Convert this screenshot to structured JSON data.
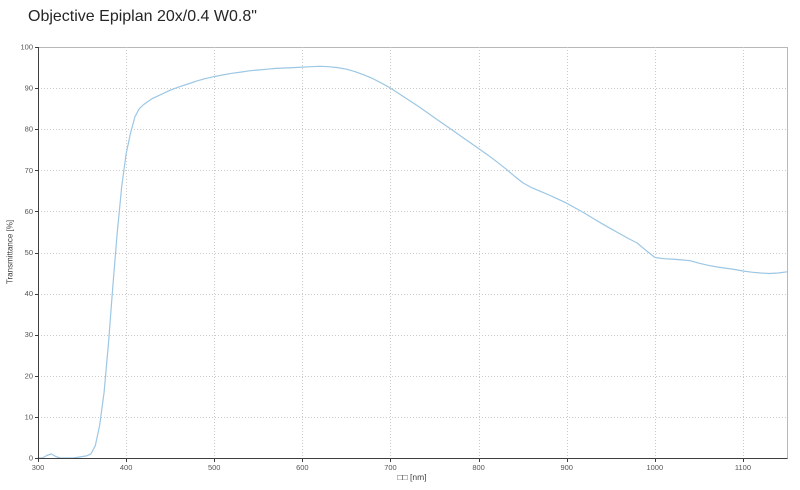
{
  "title": "Objective Epiplan 20x/0.4 W0.8\"",
  "chart_data": {
    "type": "line",
    "title": "Objective Epiplan 20x/0.4 W0.8\"",
    "xlabel": "□□ [nm]",
    "ylabel": "Transmittance [%]",
    "xlim": [
      300,
      1150
    ],
    "ylim": [
      0,
      100
    ],
    "x_ticks": [
      300,
      400,
      500,
      600,
      700,
      800,
      900,
      1000,
      1100
    ],
    "y_ticks": [
      0,
      10,
      20,
      30,
      40,
      50,
      60,
      70,
      80,
      90,
      100
    ],
    "grid": true,
    "legend": "none",
    "line_color": "#9cc7e4",
    "series": [
      {
        "name": "transmittance",
        "x": [
          300,
          305,
          310,
          315,
          320,
          325,
          340,
          355,
          360,
          365,
          370,
          375,
          380,
          385,
          390,
          395,
          400,
          405,
          410,
          415,
          420,
          430,
          440,
          450,
          460,
          470,
          480,
          490,
          500,
          510,
          520,
          530,
          540,
          550,
          560,
          570,
          580,
          590,
          600,
          610,
          620,
          630,
          640,
          650,
          660,
          670,
          680,
          690,
          700,
          710,
          720,
          730,
          740,
          750,
          760,
          770,
          780,
          790,
          800,
          810,
          820,
          830,
          840,
          850,
          860,
          870,
          880,
          890,
          900,
          910,
          920,
          930,
          940,
          950,
          960,
          970,
          980,
          990,
          1000,
          1010,
          1020,
          1030,
          1040,
          1050,
          1060,
          1070,
          1080,
          1090,
          1100,
          1110,
          1120,
          1130,
          1140,
          1150
        ],
        "y": [
          0,
          0,
          0.6,
          1,
          0.4,
          0,
          0,
          0.5,
          1,
          3,
          8,
          16,
          28,
          42,
          55,
          66,
          74,
          79,
          83,
          85,
          86,
          87.5,
          88.5,
          89.5,
          90.3,
          91,
          91.7,
          92.3,
          92.8,
          93.2,
          93.6,
          93.9,
          94.2,
          94.4,
          94.6,
          94.8,
          94.9,
          95,
          95.1,
          95.2,
          95.3,
          95.2,
          95,
          94.6,
          94,
          93.2,
          92.3,
          91.2,
          90,
          88.6,
          87.2,
          85.8,
          84.3,
          82.8,
          81.3,
          79.8,
          78.3,
          76.8,
          75.3,
          73.8,
          72.2,
          70.5,
          68.7,
          67,
          65.8,
          64.9,
          64,
          63,
          62,
          60.8,
          59.6,
          58.3,
          57,
          55.8,
          54.6,
          53.4,
          52.3,
          50.5,
          48.8,
          48.5,
          48.4,
          48.2,
          48,
          47.4,
          46.9,
          46.5,
          46.2,
          45.9,
          45.5,
          45.2,
          45,
          44.9,
          45,
          45.3
        ]
      }
    ]
  },
  "colors": {
    "grid": "#c9c9c9",
    "axis": "#3f3f3f",
    "border": "#b8b8b8",
    "tick_text": "#555555"
  }
}
